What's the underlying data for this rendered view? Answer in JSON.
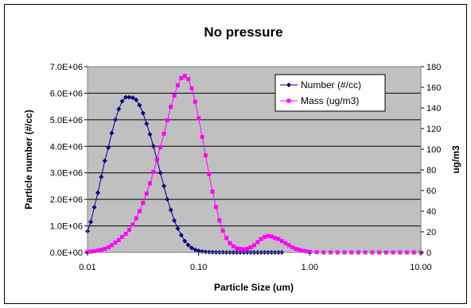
{
  "chart_data": {
    "type": "line",
    "title": "No pressure",
    "xlabel": "Particle Size (um)",
    "ylabel": "Particle number (#/cc)",
    "y2label": "ug/m3",
    "x_scale": "log",
    "xlim": [
      0.01,
      10
    ],
    "ylim": [
      0,
      7000000
    ],
    "y2lim": [
      0,
      180
    ],
    "x_ticks": [
      0.01,
      0.1,
      1,
      10
    ],
    "x_tick_labels": [
      "0.01",
      "0.10",
      "1.00",
      "10.00"
    ],
    "y_ticks": [
      0,
      1000000,
      2000000,
      3000000,
      4000000,
      5000000,
      6000000,
      7000000
    ],
    "y_tick_labels": [
      "0.0E+00",
      "1.0E+06",
      "2.0E+06",
      "3.0E+06",
      "4.0E+06",
      "5.0E+06",
      "6.0E+06",
      "7.0E+06"
    ],
    "y2_ticks": [
      0,
      20,
      40,
      60,
      80,
      100,
      120,
      140,
      160,
      180
    ],
    "y2_tick_labels": [
      "0",
      "20",
      "40",
      "60",
      "80",
      "100",
      "120",
      "140",
      "160",
      "180"
    ],
    "grid": "horizontal",
    "legend_position": "top-right",
    "plot_background": "#c0c0c0",
    "series": [
      {
        "name": "Number (#/cc)",
        "axis": "left",
        "color": "#000080",
        "marker": "diamond",
        "points": [
          [
            0.01,
            800000
          ],
          [
            0.0107,
            1150000
          ],
          [
            0.0115,
            1700000
          ],
          [
            0.0124,
            2250000
          ],
          [
            0.0133,
            2850000
          ],
          [
            0.0143,
            3450000
          ],
          [
            0.0154,
            3950000
          ],
          [
            0.0165,
            4500000
          ],
          [
            0.0178,
            5000000
          ],
          [
            0.0191,
            5400000
          ],
          [
            0.0205,
            5700000
          ],
          [
            0.0221,
            5850000
          ],
          [
            0.0237,
            5850000
          ],
          [
            0.0255,
            5830000
          ],
          [
            0.0274,
            5750000
          ],
          [
            0.0294,
            5550000
          ],
          [
            0.0316,
            5250000
          ],
          [
            0.034,
            4850000
          ],
          [
            0.0365,
            4450000
          ],
          [
            0.0392,
            4000000
          ],
          [
            0.0422,
            3500000
          ],
          [
            0.0453,
            3000000
          ],
          [
            0.0487,
            2500000
          ],
          [
            0.0523,
            2000000
          ],
          [
            0.0562,
            1600000
          ],
          [
            0.0604,
            1200000
          ],
          [
            0.0649,
            900000
          ],
          [
            0.0698,
            650000
          ],
          [
            0.075,
            430000
          ],
          [
            0.0806,
            280000
          ],
          [
            0.0866,
            170000
          ],
          [
            0.0931,
            100000
          ],
          [
            0.1,
            60000
          ],
          [
            0.1075,
            35000
          ],
          [
            0.1155,
            20000
          ],
          [
            0.124,
            12000
          ],
          [
            0.1333,
            8000
          ],
          [
            0.1433,
            5000
          ],
          [
            0.154,
            3000
          ],
          [
            0.1655,
            2000
          ],
          [
            0.1778,
            1000
          ],
          [
            0.1911,
            0
          ],
          [
            0.2054,
            0
          ],
          [
            0.2207,
            0
          ],
          [
            0.2371,
            0
          ],
          [
            0.2548,
            0
          ],
          [
            0.2738,
            0
          ],
          [
            0.2943,
            0
          ],
          [
            0.3162,
            0
          ],
          [
            0.3398,
            0
          ],
          [
            0.3652,
            0
          ],
          [
            0.3924,
            0
          ],
          [
            0.4217,
            0
          ],
          [
            0.4532,
            0
          ],
          [
            0.487,
            0
          ],
          [
            0.5233,
            0
          ],
          [
            0.5623,
            0
          ]
        ]
      },
      {
        "name": "Mass (ug/m3)",
        "axis": "right",
        "color": "#ff00ff",
        "marker": "square",
        "points": [
          [
            0.01,
            0.5
          ],
          [
            0.0107,
            0.8
          ],
          [
            0.0115,
            1.2
          ],
          [
            0.0124,
            1.8
          ],
          [
            0.0133,
            2.5
          ],
          [
            0.0143,
            3.5
          ],
          [
            0.0154,
            5
          ],
          [
            0.0165,
            7
          ],
          [
            0.0178,
            9.5
          ],
          [
            0.0191,
            12
          ],
          [
            0.0205,
            15
          ],
          [
            0.0221,
            18
          ],
          [
            0.0237,
            22
          ],
          [
            0.0255,
            27
          ],
          [
            0.0274,
            33
          ],
          [
            0.0294,
            40
          ],
          [
            0.0316,
            48
          ],
          [
            0.034,
            57
          ],
          [
            0.0365,
            67
          ],
          [
            0.0392,
            78
          ],
          [
            0.0422,
            90
          ],
          [
            0.0453,
            102
          ],
          [
            0.0487,
            115
          ],
          [
            0.0523,
            128
          ],
          [
            0.0562,
            141
          ],
          [
            0.0604,
            152
          ],
          [
            0.0649,
            162
          ],
          [
            0.0698,
            169
          ],
          [
            0.075,
            171
          ],
          [
            0.0806,
            168
          ],
          [
            0.0866,
            159
          ],
          [
            0.0931,
            146
          ],
          [
            0.1,
            130
          ],
          [
            0.1075,
            112
          ],
          [
            0.1155,
            94
          ],
          [
            0.124,
            76
          ],
          [
            0.1333,
            59
          ],
          [
            0.1433,
            44
          ],
          [
            0.154,
            31
          ],
          [
            0.1655,
            21
          ],
          [
            0.1778,
            14
          ],
          [
            0.1911,
            9
          ],
          [
            0.2054,
            6
          ],
          [
            0.2207,
            4
          ],
          [
            0.2371,
            3.5
          ],
          [
            0.2548,
            3
          ],
          [
            0.2738,
            3.5
          ],
          [
            0.2943,
            5
          ],
          [
            0.3162,
            7
          ],
          [
            0.3398,
            10
          ],
          [
            0.3652,
            13
          ],
          [
            0.3924,
            15
          ],
          [
            0.4217,
            16
          ],
          [
            0.4532,
            15.5
          ],
          [
            0.487,
            14
          ],
          [
            0.5233,
            13
          ],
          [
            0.5623,
            11
          ],
          [
            0.6043,
            9
          ],
          [
            0.6494,
            7
          ],
          [
            0.6978,
            5
          ],
          [
            0.7499,
            3.5
          ],
          [
            0.8058,
            2.5
          ],
          [
            0.866,
            1.5
          ],
          [
            0.9306,
            1
          ],
          [
            1.0,
            0.5
          ],
          [
            1.1548,
            0.2
          ],
          [
            1.3335,
            0
          ],
          [
            1.5399,
            0
          ],
          [
            1.7783,
            0
          ],
          [
            2.0535,
            0
          ],
          [
            2.3714,
            0
          ],
          [
            2.7384,
            0
          ],
          [
            3.1623,
            0
          ],
          [
            3.6517,
            0
          ],
          [
            4.217,
            0
          ],
          [
            4.8697,
            0
          ],
          [
            5.6234,
            0
          ],
          [
            6.4938,
            0
          ],
          [
            7.4989,
            0
          ],
          [
            8.6596,
            0
          ],
          [
            10.0,
            0
          ]
        ]
      }
    ]
  }
}
